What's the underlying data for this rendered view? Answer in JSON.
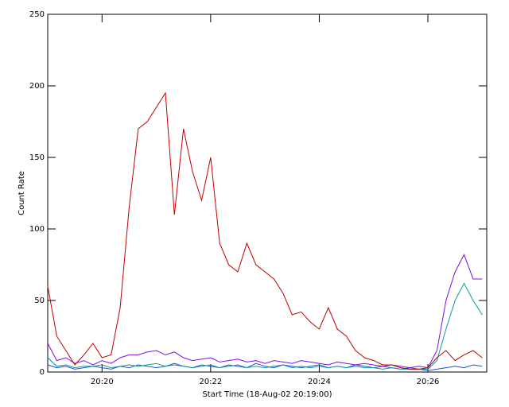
{
  "chart_data": {
    "type": "line",
    "xlabel": "Start Time (18-Aug-02 20:19:00)",
    "ylabel": "Count Rate",
    "x": [
      0,
      10,
      20,
      30,
      40,
      50,
      60,
      70,
      80,
      90,
      100,
      110,
      120,
      130,
      140,
      150,
      160,
      170,
      180,
      190,
      200,
      210,
      220,
      230,
      240,
      250,
      260,
      270,
      280,
      290,
      300,
      310,
      320,
      330,
      340,
      350,
      360,
      370,
      380,
      390,
      400,
      410,
      420,
      430,
      440,
      450,
      460,
      470,
      480
    ],
    "xlim": [
      0,
      485
    ],
    "xticks": [
      {
        "value": 60,
        "label": "20:20"
      },
      {
        "value": 180,
        "label": "20:22"
      },
      {
        "value": 300,
        "label": "20:24"
      },
      {
        "value": 420,
        "label": "20:26"
      }
    ],
    "ylim": [
      0,
      250
    ],
    "yticks": [
      0,
      50,
      100,
      150,
      200,
      250
    ],
    "series": [
      {
        "color": "#c00000",
        "values": [
          60,
          25,
          15,
          5,
          12,
          20,
          10,
          12,
          45,
          115,
          170,
          175,
          185,
          195,
          110,
          170,
          140,
          120,
          150,
          90,
          75,
          70,
          90,
          75,
          70,
          65,
          55,
          40,
          42,
          35,
          30,
          45,
          30,
          25,
          15,
          10,
          8,
          5,
          5,
          3,
          2,
          2,
          3,
          10,
          15,
          8,
          12,
          15,
          10
        ]
      },
      {
        "color": "#7a10e0",
        "values": [
          20,
          8,
          10,
          6,
          8,
          5,
          8,
          6,
          10,
          12,
          12,
          14,
          15,
          12,
          14,
          10,
          8,
          9,
          10,
          7,
          8,
          9,
          7,
          8,
          6,
          8,
          7,
          6,
          8,
          7,
          6,
          5,
          7,
          6,
          5,
          6,
          5,
          4,
          5,
          4,
          3,
          4,
          3,
          15,
          50,
          70,
          82,
          65,
          65
        ]
      },
      {
        "color": "#0a9aa0",
        "values": [
          10,
          4,
          5,
          3,
          4,
          4,
          5,
          3,
          4,
          5,
          4,
          5,
          6,
          4,
          5,
          4,
          3,
          4,
          5,
          3,
          4,
          5,
          3,
          4,
          3,
          4,
          5,
          3,
          4,
          3,
          4,
          3,
          4,
          3,
          4,
          3,
          3,
          2,
          3,
          2,
          2,
          2,
          2,
          8,
          30,
          50,
          62,
          50,
          40
        ]
      },
      {
        "color": "#2050d0",
        "values": [
          5,
          3,
          4,
          2,
          3,
          4,
          3,
          2,
          4,
          3,
          5,
          4,
          3,
          4,
          6,
          4,
          3,
          5,
          4,
          3,
          5,
          4,
          3,
          6,
          4,
          3,
          5,
          4,
          3,
          4,
          5,
          3,
          4,
          3,
          5,
          4,
          3,
          4,
          3,
          2,
          3,
          2,
          1,
          2,
          3,
          4,
          3,
          5,
          4
        ]
      }
    ]
  }
}
